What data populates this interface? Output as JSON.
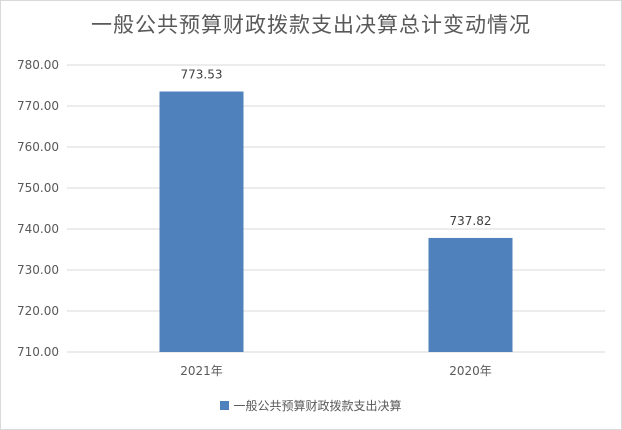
{
  "chart_data": {
    "type": "bar",
    "title": "一般公共预算财政拨款支出决算总计变动情况",
    "categories": [
      "2021年",
      "2020年"
    ],
    "series": [
      {
        "name": "一般公共预算财政拨款支出决算",
        "values": [
          773.53,
          737.82
        ],
        "labels": [
          "773.53",
          "737.82"
        ]
      }
    ],
    "ylim": [
      710.0,
      780.0
    ],
    "yticks": [
      "710.00",
      "720.00",
      "730.00",
      "740.00",
      "750.00",
      "760.00",
      "770.00",
      "780.00"
    ],
    "grid": true,
    "legend_position": "bottom",
    "colors": {
      "bar": "#4f81bd",
      "grid": "#d9d9d9",
      "text": "#595959"
    }
  }
}
